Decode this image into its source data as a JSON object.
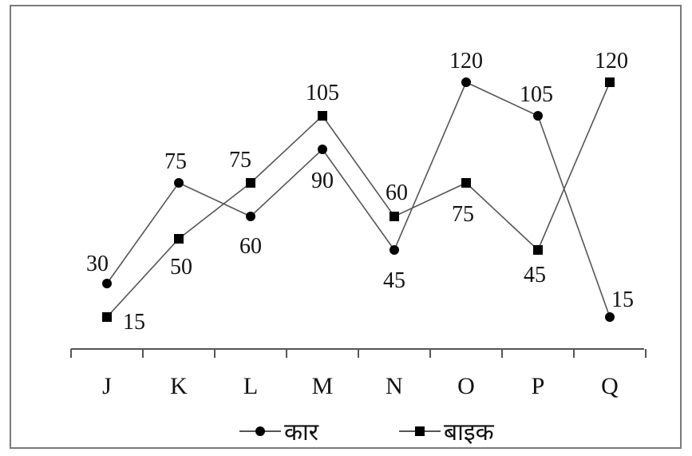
{
  "chart_data": {
    "type": "line",
    "categories": [
      "J",
      "K",
      "L",
      "M",
      "N",
      "O",
      "P",
      "Q"
    ],
    "series": [
      {
        "name": "कार",
        "marker": "circle",
        "values": [
          30,
          75,
          60,
          90,
          45,
          120,
          105,
          15
        ]
      },
      {
        "name": "बाइक",
        "marker": "square",
        "values": [
          15,
          50,
          75,
          105,
          60,
          75,
          45,
          120
        ]
      }
    ],
    "title": "",
    "xlabel": "",
    "ylabel": "",
    "ylim": [
      0,
      120
    ],
    "grid": false,
    "legend_position": "bottom-center",
    "line_color": "#555555",
    "marker_color": "#000000"
  }
}
